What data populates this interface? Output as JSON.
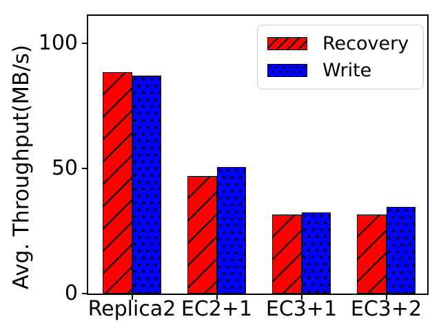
{
  "chart_data": {
    "type": "bar",
    "title": "",
    "categories": [
      "Replica2",
      "EC2+1",
      "EC3+1",
      "EC3+2"
    ],
    "series": [
      {
        "name": "Recovery",
        "color": "#ff0000",
        "hatch": "diagonal-lines",
        "values": [
          88.5,
          47,
          31.5,
          31.5
        ]
      },
      {
        "name": "Write",
        "color": "#0000ff",
        "hatch": "dots",
        "values": [
          87,
          50.5,
          32.5,
          34.5
        ]
      }
    ],
    "xlabel": "",
    "ylabel": "Avg. Throughput(MB/s)",
    "ylim": [
      0,
      111
    ],
    "yticks": [
      0,
      50,
      100
    ],
    "grid": false,
    "legend_position": "upper-right",
    "axis_color": "#000000",
    "bar_edge_color": "#000000"
  }
}
